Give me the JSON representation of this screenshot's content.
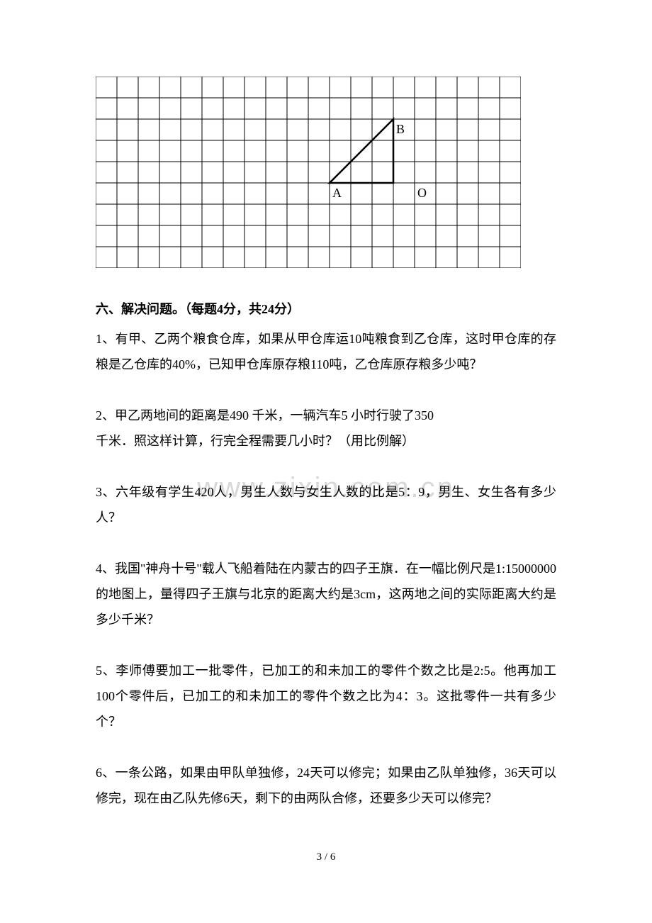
{
  "grid": {
    "cols": 20,
    "rows": 9,
    "cell_size": 30,
    "stroke_color": "#000000",
    "stroke_width": 1,
    "background": "#ffffff",
    "labels": {
      "A": {
        "col": 11,
        "row": 5
      },
      "B": {
        "col": 14,
        "row": 2
      },
      "O": {
        "col": 15,
        "row": 5
      }
    },
    "triangle": {
      "points": [
        {
          "col": 11,
          "row": 5
        },
        {
          "col": 14,
          "row": 2
        },
        {
          "col": 14,
          "row": 5
        }
      ],
      "stroke_width": 2.5
    },
    "label_fontsize": 18,
    "label_fontfamily": "serif"
  },
  "section": {
    "title": "六、解决问题。（每题4分，共24分）"
  },
  "questions": {
    "q1": "1、有甲、乙两个粮食仓库，如果从甲仓库运10吨粮食到乙仓库，这时甲仓库的存粮是乙仓库的40%，已知甲仓库原存粮110吨，乙仓库原存粮多少吨？",
    "q2_line1": "2、甲乙两地间的距离是490 千米，一辆汽车5 小时行驶了350",
    "q2_line2": "千米．照这样计算，行完全程需要几小时？（用比例解）",
    "q3": "3、六年级有学生420人，男生人数与女生人数的比是5：9，男生、女生各有多少人？",
    "q4": "4、我国\"神舟十号\"载人飞船着陆在内蒙古的四子王旗．在一幅比例尺是1:15000000的地图上，量得四子王旗与北京的距离大约是3cm，这两地之间的实际距离大约是多少千米？",
    "q5": "5、李师傅要加工一批零件，已加工的和未加工的零件个数之比是2:5。他再加工100个零件后，已加工的和未加工的零件个数之比为4：3。这批零件一共有多少个？",
    "q6": "6、一条公路，如果由甲队单独修，24天可以修完；如果由乙队单独修，36天可以修完，现在由乙队先修6天，剩下的由两队合修，还要多少天可以修完？"
  },
  "watermark": {
    "text": "www.zixin.com.cn",
    "color": "#d8d8d8",
    "fontsize": 40
  },
  "footer": {
    "text": "3 / 6"
  }
}
